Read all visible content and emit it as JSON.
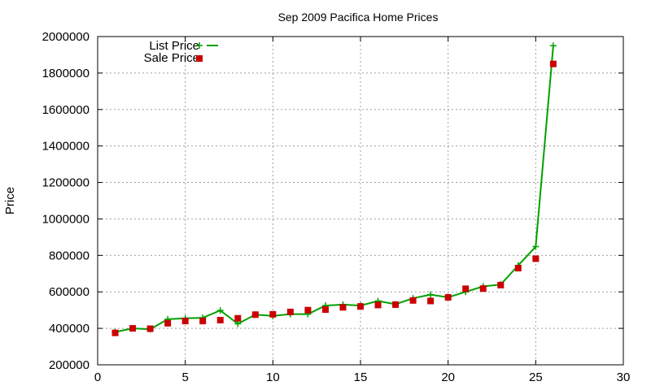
{
  "chart_data": {
    "type": "line",
    "title": "Sep 2009 Pacifica Home Prices",
    "xlabel": "",
    "ylabel": "Price",
    "xlim": [
      0,
      30
    ],
    "ylim": [
      200000,
      2000000
    ],
    "x_ticks": [
      0,
      5,
      10,
      15,
      20,
      25,
      30
    ],
    "y_ticks": [
      200000,
      400000,
      600000,
      800000,
      1000000,
      1200000,
      1400000,
      1600000,
      1800000,
      2000000
    ],
    "x_tick_labels": [
      "0",
      "5",
      "10",
      "15",
      "20",
      "25",
      "30"
    ],
    "y_tick_labels": [
      "200000",
      "400000",
      "600000",
      "800000",
      "1000000",
      "1200000",
      "1400000",
      "1600000",
      "1800000",
      "2000000"
    ],
    "grid": true,
    "legend_position": "top-left",
    "series": [
      {
        "name": "List Price",
        "style": "line-with-plus-markers",
        "color": "#00a000",
        "x": [
          1,
          2,
          3,
          4,
          5,
          6,
          7,
          8,
          9,
          10,
          11,
          12,
          13,
          14,
          15,
          16,
          17,
          18,
          19,
          20,
          21,
          22,
          23,
          24,
          25,
          26
        ],
        "values": [
          380000,
          400000,
          395000,
          450000,
          455000,
          458000,
          498000,
          425000,
          475000,
          468000,
          478000,
          478000,
          525000,
          530000,
          525000,
          550000,
          532000,
          565000,
          585000,
          570000,
          600000,
          630000,
          640000,
          745000,
          848000,
          1950000
        ]
      },
      {
        "name": "Sale Price",
        "style": "square-markers",
        "color": "#cc0000",
        "x": [
          1,
          2,
          3,
          4,
          5,
          6,
          7,
          8,
          9,
          10,
          11,
          12,
          13,
          14,
          15,
          16,
          17,
          18,
          19,
          20,
          21,
          22,
          23,
          24,
          25,
          26
        ],
        "values": [
          375000,
          400000,
          398000,
          428000,
          440000,
          440000,
          445000,
          455000,
          475000,
          477000,
          490000,
          500000,
          503000,
          515000,
          520000,
          528000,
          530000,
          553000,
          550000,
          570000,
          617000,
          618000,
          637000,
          730000,
          782000,
          1850000
        ]
      }
    ]
  }
}
